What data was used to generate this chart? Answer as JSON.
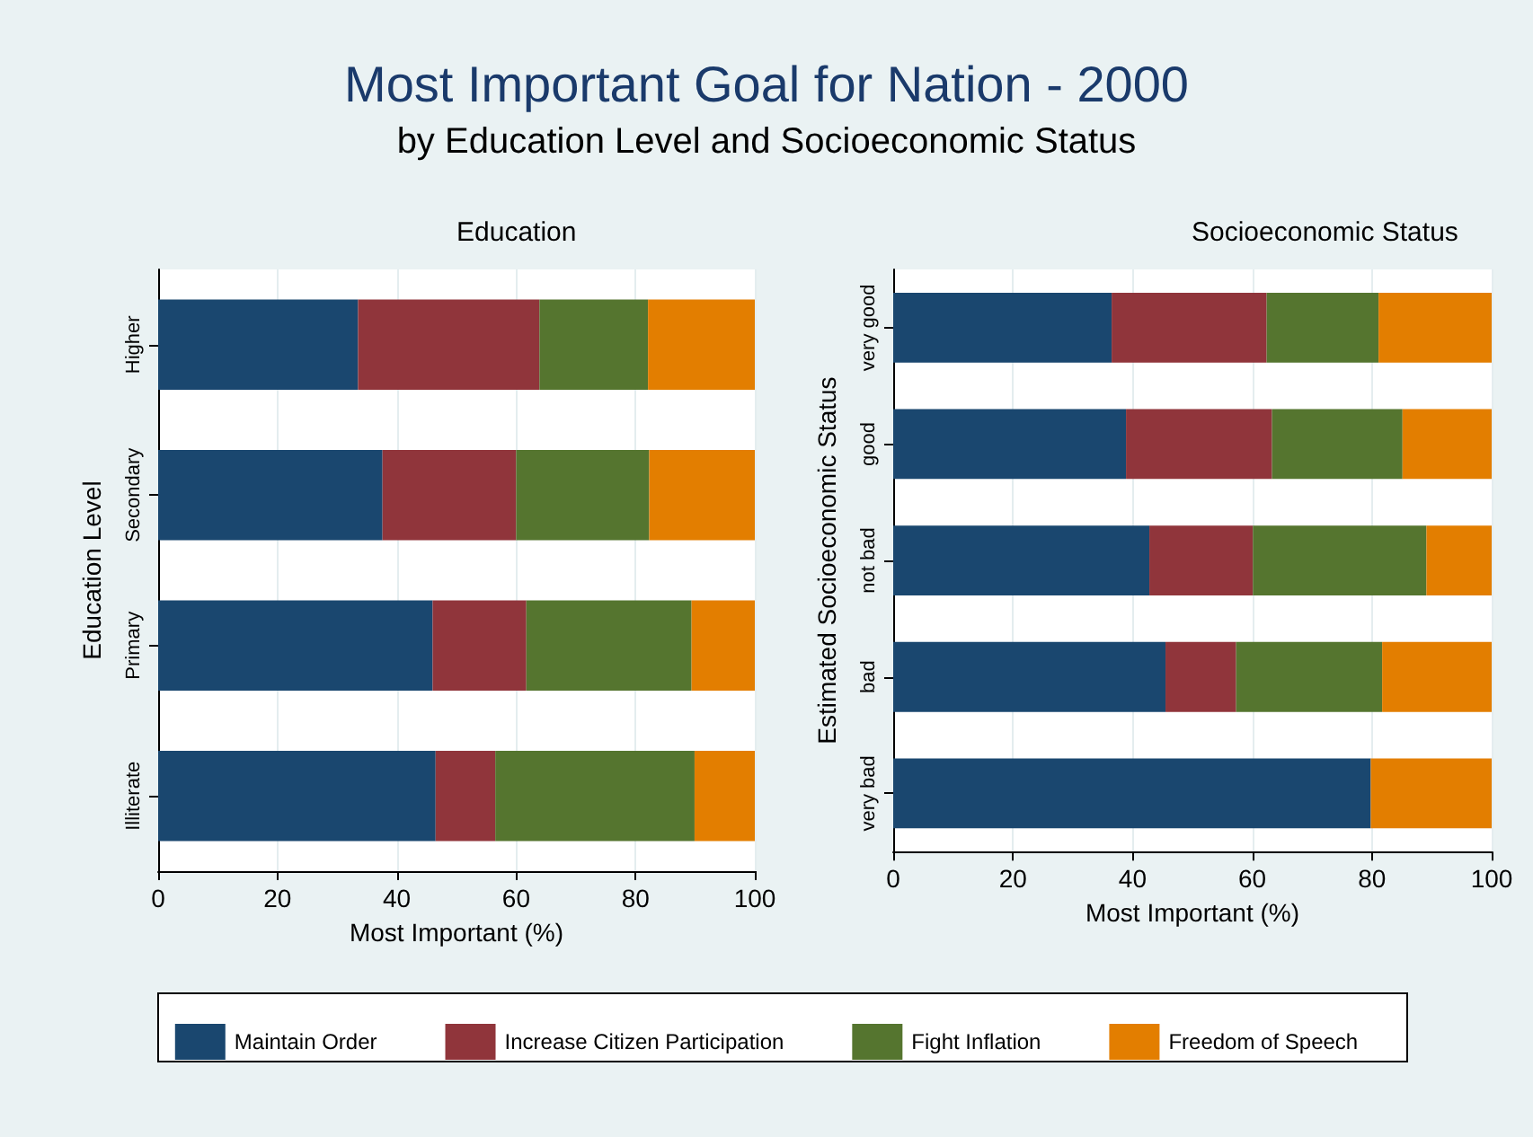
{
  "chart_data": [
    {
      "type": "bar",
      "orientation": "horizontal",
      "stacked": true,
      "title": "Most Important Goal for Nation - 2000",
      "subtitle": "by Education Level and Socioeconomic Status",
      "annotations": [
        "Education"
      ],
      "xlabel": "Most Important (%)",
      "ylabel": "Education Level",
      "categories": [
        "Higher",
        "Secondary",
        "Primary",
        "Illiterate"
      ],
      "xlim": [
        0,
        100
      ],
      "xticks": [
        0,
        20,
        40,
        60,
        80,
        100
      ],
      "grid": "x",
      "legend": "bottom",
      "series": [
        {
          "name": "Maintain Order",
          "color": "#1a476f",
          "values": [
            33.5,
            37.6,
            46.0,
            46.5
          ]
        },
        {
          "name": "Increase Citizen Participation",
          "color": "#90353b",
          "values": [
            30.4,
            22.4,
            15.7,
            10.0
          ]
        },
        {
          "name": "Fight Inflation",
          "color": "#55752f",
          "values": [
            18.2,
            22.3,
            27.7,
            33.4
          ]
        },
        {
          "name": "Freedom of Speech",
          "color": "#e37e00",
          "values": [
            17.9,
            17.7,
            10.6,
            10.1
          ]
        }
      ]
    },
    {
      "type": "bar",
      "orientation": "horizontal",
      "stacked": true,
      "annotations": [
        "Socioeconomic Status"
      ],
      "xlabel": "Most Important (%)",
      "ylabel": "Estimated Socioeconomic Status",
      "categories": [
        "very good",
        "good",
        "not bad",
        "bad",
        "very bad"
      ],
      "xlim": [
        0,
        100
      ],
      "xticks": [
        0,
        20,
        40,
        60,
        80,
        100
      ],
      "grid": "x",
      "legend": false,
      "series": [
        {
          "color": "#1a476f",
          "values": [
            36.5,
            38.9,
            42.8,
            45.5,
            79.8
          ]
        },
        {
          "color": "#90353b",
          "values": [
            25.9,
            24.4,
            17.3,
            11.8,
            0
          ]
        },
        {
          "color": "#55752f",
          "values": [
            18.7,
            21.8,
            29.0,
            24.4,
            0
          ]
        },
        {
          "color": "#e37e00",
          "values": [
            18.9,
            14.9,
            10.9,
            18.3,
            20.2
          ]
        }
      ]
    }
  ]
}
